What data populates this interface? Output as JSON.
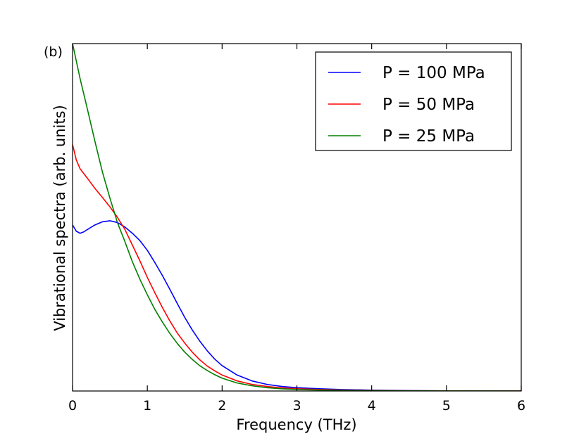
{
  "chart_data": {
    "type": "line",
    "panel_label": "(b)",
    "title": "",
    "xlabel": "Frequency (THz)",
    "ylabel": "Vibrational spectra (arb. units)",
    "xlim": [
      0,
      6
    ],
    "ylim": [
      0,
      1.0
    ],
    "xticks": [
      "0",
      "1",
      "2",
      "3",
      "4",
      "5",
      "6"
    ],
    "yticks": [],
    "grid": false,
    "legend_position": "top-right",
    "series": [
      {
        "name": "P = 100 MPa",
        "color": "#0000ff",
        "x": [
          0,
          0.05,
          0.1,
          0.15,
          0.2,
          0.3,
          0.4,
          0.5,
          0.6,
          0.7,
          0.8,
          0.9,
          1.0,
          1.1,
          1.2,
          1.3,
          1.4,
          1.5,
          1.6,
          1.7,
          1.8,
          1.9,
          2.0,
          2.2,
          2.4,
          2.6,
          2.8,
          3.0,
          3.3,
          3.6,
          4.0,
          4.5,
          5.0,
          5.5,
          6.0
        ],
        "values": [
          0.478,
          0.46,
          0.454,
          0.458,
          0.465,
          0.478,
          0.487,
          0.49,
          0.485,
          0.472,
          0.454,
          0.433,
          0.405,
          0.37,
          0.333,
          0.293,
          0.252,
          0.212,
          0.176,
          0.144,
          0.116,
          0.092,
          0.073,
          0.046,
          0.029,
          0.019,
          0.013,
          0.0095,
          0.0065,
          0.0043,
          0.0025,
          0.0012,
          0.0005,
          0.0002,
          0.0001
        ]
      },
      {
        "name": "P = 50 MPa",
        "color": "#ff0000",
        "x": [
          0,
          0.05,
          0.1,
          0.2,
          0.3,
          0.4,
          0.5,
          0.6,
          0.7,
          0.8,
          0.9,
          1.0,
          1.1,
          1.2,
          1.3,
          1.4,
          1.5,
          1.6,
          1.7,
          1.8,
          1.9,
          2.0,
          2.2,
          2.4,
          2.6,
          2.8,
          3.0,
          3.3,
          3.6,
          4.0,
          4.5,
          5.0,
          5.5,
          6.0
        ],
        "values": [
          0.71,
          0.665,
          0.64,
          0.612,
          0.583,
          0.557,
          0.53,
          0.5,
          0.465,
          0.42,
          0.375,
          0.327,
          0.283,
          0.241,
          0.202,
          0.167,
          0.138,
          0.112,
          0.09,
          0.072,
          0.058,
          0.046,
          0.029,
          0.019,
          0.013,
          0.009,
          0.0065,
          0.0042,
          0.0027,
          0.0015,
          0.0007,
          0.0003,
          0.0001,
          5e-05
        ]
      },
      {
        "name": "P = 25 MPa",
        "color": "#008000",
        "x": [
          0,
          0.05,
          0.1,
          0.2,
          0.3,
          0.4,
          0.5,
          0.6,
          0.7,
          0.8,
          0.9,
          1.0,
          1.1,
          1.2,
          1.3,
          1.4,
          1.5,
          1.6,
          1.7,
          1.8,
          1.9,
          2.0,
          2.2,
          2.4,
          2.6,
          2.8,
          3.0,
          3.3,
          3.6,
          4.0,
          4.5,
          5.0,
          5.5,
          6.0
        ],
        "values": [
          1.0,
          0.95,
          0.9,
          0.81,
          0.718,
          0.63,
          0.555,
          0.485,
          0.43,
          0.372,
          0.322,
          0.277,
          0.235,
          0.199,
          0.166,
          0.137,
          0.112,
          0.091,
          0.073,
          0.059,
          0.047,
          0.037,
          0.023,
          0.015,
          0.0095,
          0.0063,
          0.0043,
          0.0026,
          0.0016,
          0.0008,
          0.0003,
          0.0001,
          5e-05,
          2e-05
        ]
      }
    ]
  }
}
